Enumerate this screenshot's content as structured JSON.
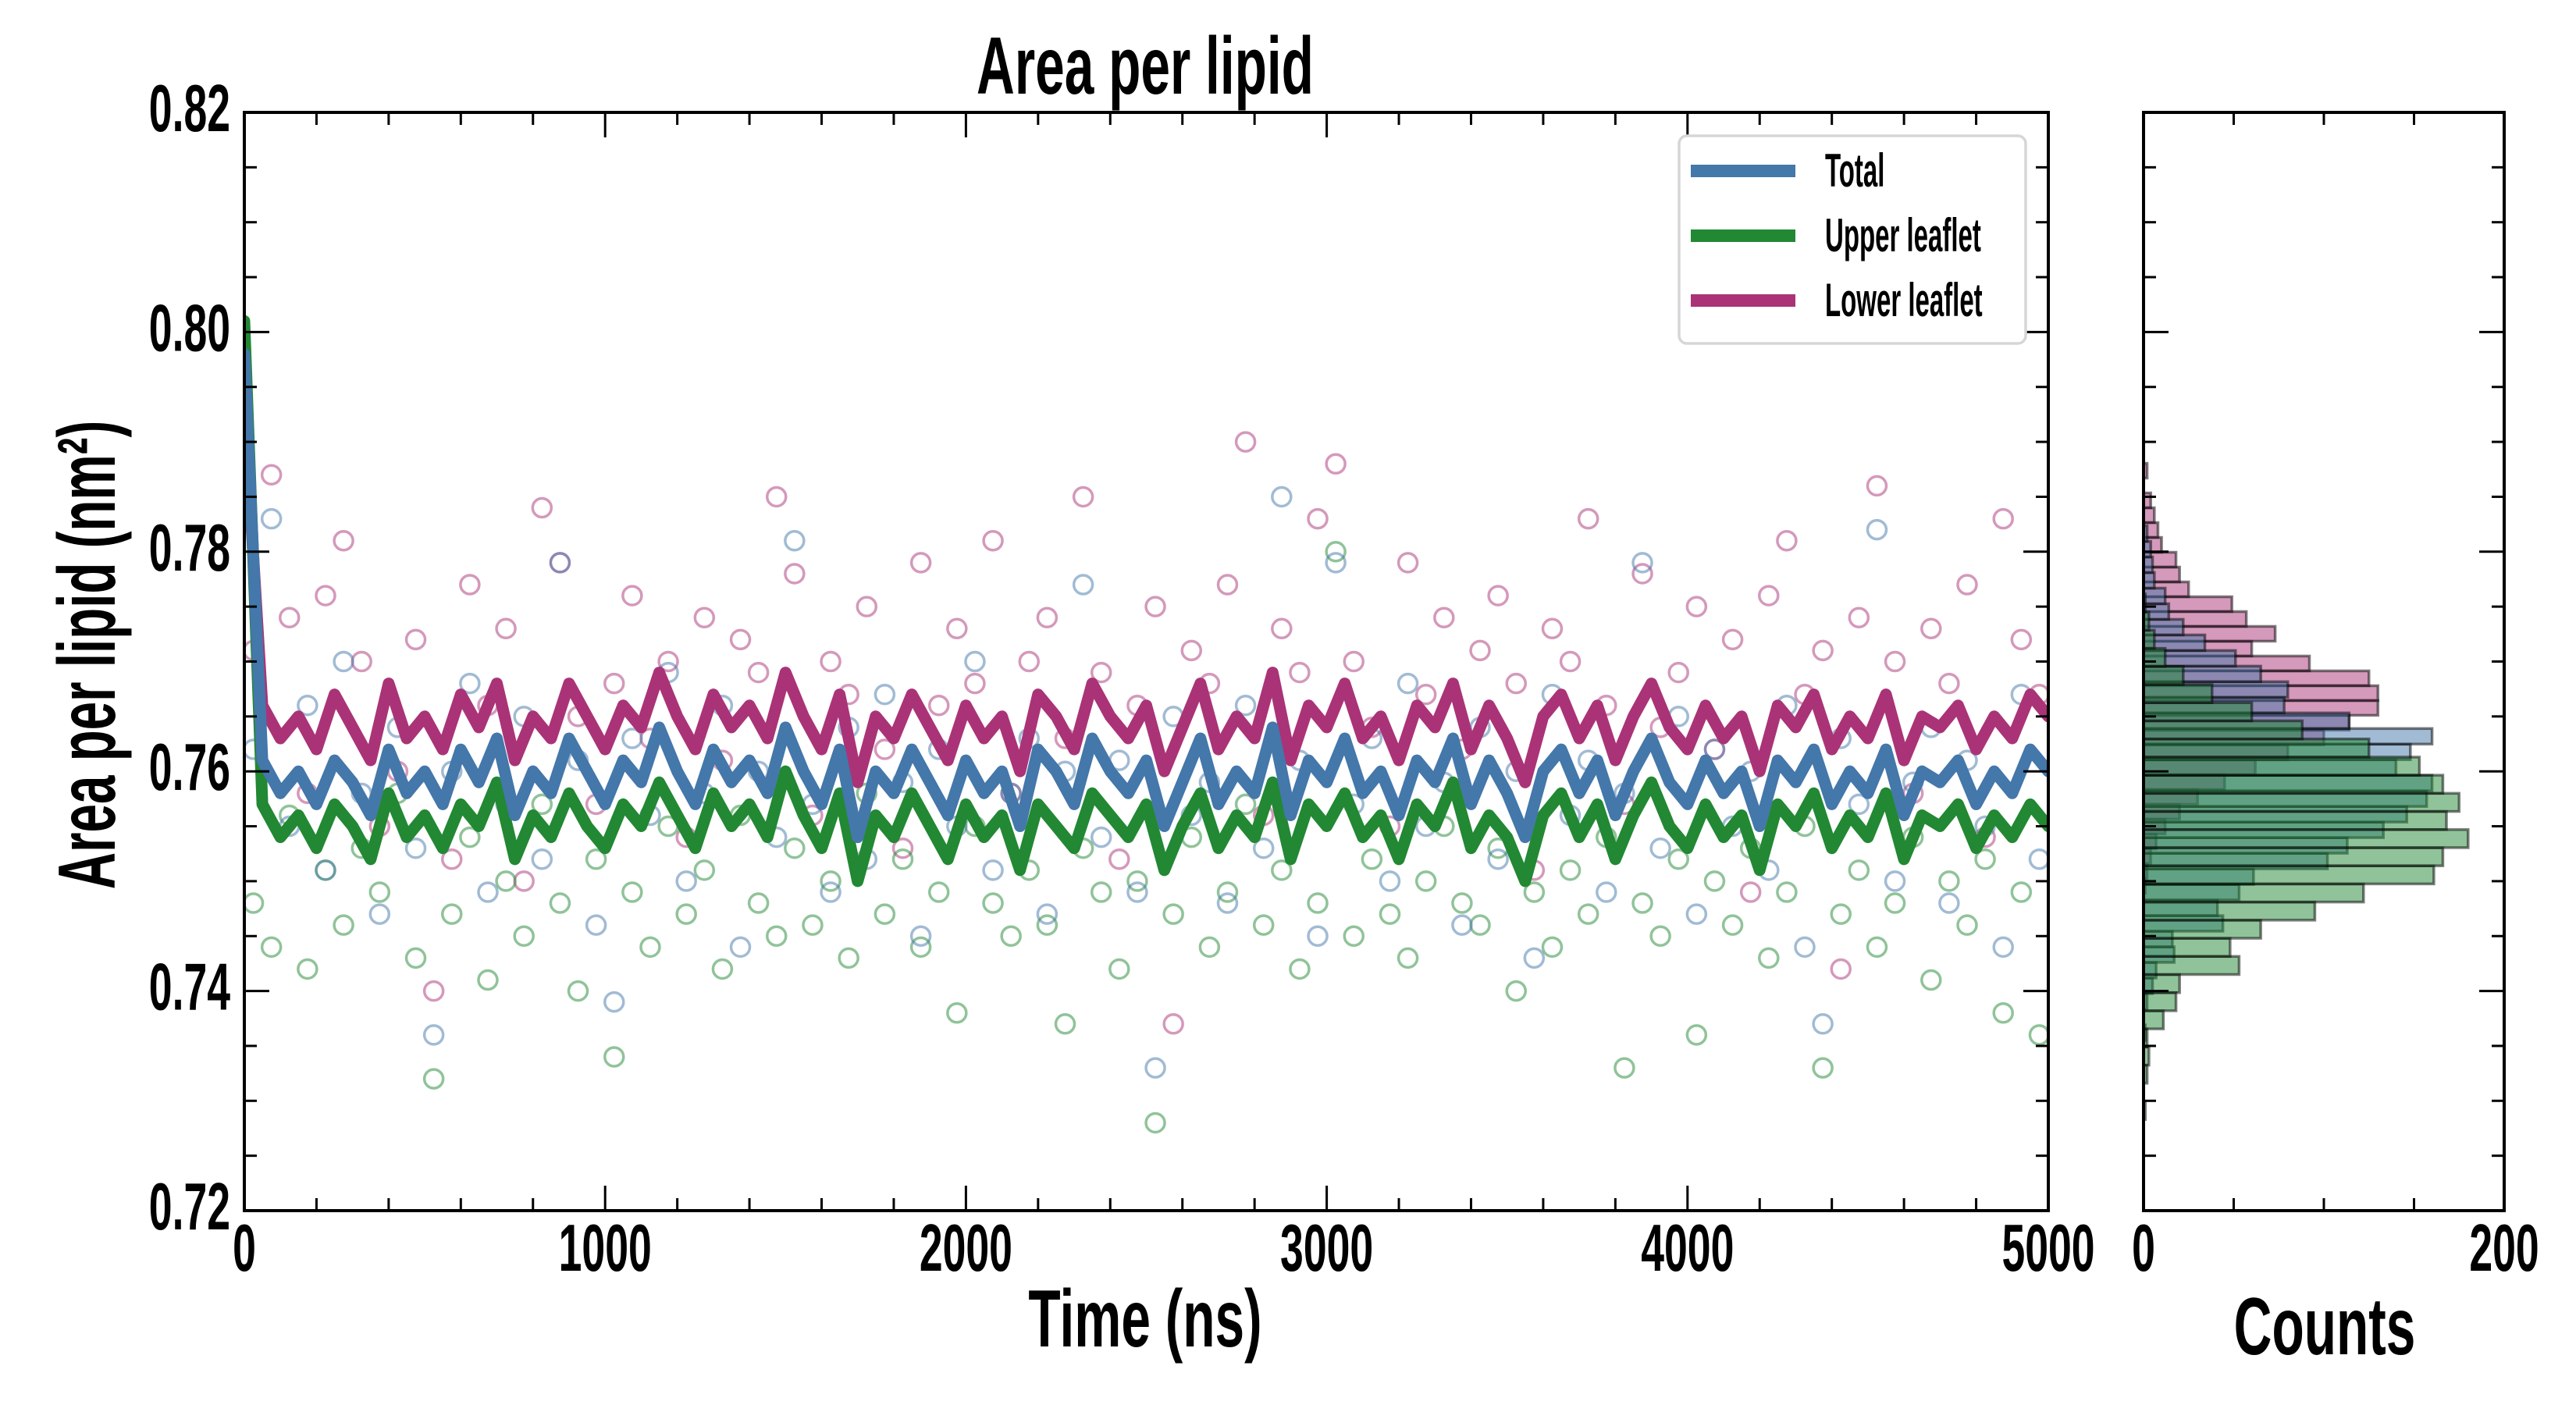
{
  "chart_data": [
    {
      "type": "line",
      "subtype": "line+scatter time series",
      "title": "Area per lipid",
      "xlabel": "Time (ns)",
      "ylabel": "Area per lipid (nm²)",
      "xlim": [
        0,
        5000
      ],
      "ylim": [
        0.72,
        0.82
      ],
      "grid": false,
      "x_ticks": {
        "values": [
          0,
          1000,
          2000,
          3000,
          4000,
          5000
        ],
        "labels": [
          "0",
          "1000",
          "2000",
          "3000",
          "4000",
          "5000"
        ],
        "minor_step": 200
      },
      "y_ticks": {
        "values": [
          0.72,
          0.74,
          0.76,
          0.78,
          0.8,
          0.82
        ],
        "labels": [
          "0.72",
          "0.74",
          "0.76",
          "0.78",
          "0.80",
          "0.82"
        ],
        "minor_step": 0.005
      },
      "legend": {
        "placement": "top-right",
        "entries": [
          {
            "label": "Total",
            "color": "#4477aa"
          },
          {
            "label": "Upper leaflet",
            "color": "#228833"
          },
          {
            "label": "Lower leaflet",
            "color": "#aa3377"
          }
        ]
      },
      "series": [
        {
          "name": "Lower leaflet",
          "color": "#aa3377",
          "line": {
            "x_start": 0,
            "x_step": 50,
            "values": [
              0.793,
              0.766,
              0.763,
              0.765,
              0.762,
              0.767,
              0.764,
              0.761,
              0.768,
              0.763,
              0.765,
              0.762,
              0.767,
              0.764,
              0.768,
              0.761,
              0.765,
              0.763,
              0.768,
              0.765,
              0.762,
              0.766,
              0.764,
              0.769,
              0.765,
              0.762,
              0.767,
              0.764,
              0.766,
              0.763,
              0.769,
              0.765,
              0.762,
              0.767,
              0.759,
              0.765,
              0.763,
              0.767,
              0.764,
              0.761,
              0.766,
              0.763,
              0.765,
              0.76,
              0.767,
              0.765,
              0.762,
              0.768,
              0.765,
              0.763,
              0.766,
              0.76,
              0.764,
              0.768,
              0.762,
              0.765,
              0.763,
              0.769,
              0.761,
              0.766,
              0.764,
              0.768,
              0.763,
              0.765,
              0.761,
              0.766,
              0.764,
              0.768,
              0.762,
              0.766,
              0.763,
              0.759,
              0.765,
              0.767,
              0.763,
              0.766,
              0.761,
              0.765,
              0.768,
              0.764,
              0.762,
              0.766,
              0.763,
              0.765,
              0.76,
              0.766,
              0.764,
              0.767,
              0.762,
              0.765,
              0.763,
              0.767,
              0.761,
              0.765,
              0.764,
              0.766,
              0.762,
              0.765,
              0.763,
              0.767,
              0.765
            ]
          },
          "scatter": {
            "x_start": 25,
            "x_step": 50,
            "values": [
              0.771,
              0.787,
              0.774,
              0.758,
              0.776,
              0.781,
              0.77,
              0.755,
              0.76,
              0.772,
              0.74,
              0.752,
              0.777,
              0.766,
              0.773,
              0.75,
              0.784,
              0.779,
              0.765,
              0.757,
              0.768,
              0.776,
              0.763,
              0.77,
              0.754,
              0.774,
              0.761,
              0.772,
              0.769,
              0.785,
              0.778,
              0.756,
              0.77,
              0.767,
              0.775,
              0.762,
              0.753,
              0.779,
              0.766,
              0.773,
              0.768,
              0.781,
              0.758,
              0.77,
              0.774,
              0.763,
              0.785,
              0.769,
              0.752,
              0.766,
              0.775,
              0.737,
              0.771,
              0.768,
              0.777,
              0.79,
              0.756,
              0.773,
              0.769,
              0.783,
              0.788,
              0.77,
              0.764,
              0.755,
              0.779,
              0.767,
              0.774,
              0.762,
              0.771,
              0.776,
              0.768,
              0.751,
              0.773,
              0.77,
              0.783,
              0.766,
              0.757,
              0.778,
              0.764,
              0.769,
              0.775,
              0.762,
              0.772,
              0.749,
              0.776,
              0.781,
              0.767,
              0.771,
              0.742,
              0.774,
              0.786,
              0.77,
              0.758,
              0.773,
              0.768,
              0.777,
              0.754,
              0.783,
              0.772,
              0.767
            ]
          }
        },
        {
          "name": "Upper leaflet",
          "color": "#228833",
          "line": {
            "x_start": 0,
            "x_step": 50,
            "values": [
              0.801,
              0.757,
              0.754,
              0.756,
              0.753,
              0.757,
              0.755,
              0.752,
              0.758,
              0.754,
              0.756,
              0.753,
              0.757,
              0.755,
              0.759,
              0.752,
              0.756,
              0.754,
              0.758,
              0.755,
              0.753,
              0.757,
              0.755,
              0.759,
              0.756,
              0.753,
              0.758,
              0.755,
              0.757,
              0.754,
              0.76,
              0.756,
              0.753,
              0.758,
              0.75,
              0.756,
              0.754,
              0.758,
              0.755,
              0.752,
              0.757,
              0.754,
              0.756,
              0.751,
              0.757,
              0.755,
              0.753,
              0.758,
              0.756,
              0.754,
              0.757,
              0.751,
              0.755,
              0.758,
              0.753,
              0.756,
              0.754,
              0.759,
              0.752,
              0.757,
              0.755,
              0.758,
              0.754,
              0.756,
              0.752,
              0.757,
              0.755,
              0.759,
              0.753,
              0.756,
              0.754,
              0.75,
              0.756,
              0.758,
              0.754,
              0.757,
              0.752,
              0.756,
              0.759,
              0.755,
              0.753,
              0.757,
              0.754,
              0.756,
              0.751,
              0.757,
              0.755,
              0.758,
              0.753,
              0.756,
              0.754,
              0.758,
              0.752,
              0.756,
              0.755,
              0.757,
              0.753,
              0.756,
              0.754,
              0.757,
              0.755
            ]
          },
          "scatter": {
            "x_start": 25,
            "x_step": 50,
            "values": [
              0.748,
              0.744,
              0.756,
              0.742,
              0.751,
              0.746,
              0.753,
              0.749,
              0.758,
              0.743,
              0.732,
              0.747,
              0.754,
              0.741,
              0.75,
              0.745,
              0.757,
              0.748,
              0.74,
              0.752,
              0.734,
              0.749,
              0.744,
              0.755,
              0.747,
              0.751,
              0.742,
              0.756,
              0.748,
              0.745,
              0.753,
              0.746,
              0.75,
              0.743,
              0.758,
              0.747,
              0.752,
              0.744,
              0.749,
              0.738,
              0.755,
              0.748,
              0.745,
              0.751,
              0.746,
              0.737,
              0.753,
              0.749,
              0.742,
              0.75,
              0.728,
              0.747,
              0.754,
              0.744,
              0.749,
              0.757,
              0.746,
              0.751,
              0.742,
              0.748,
              0.78,
              0.745,
              0.752,
              0.747,
              0.743,
              0.75,
              0.755,
              0.748,
              0.746,
              0.753,
              0.74,
              0.749,
              0.744,
              0.751,
              0.747,
              0.754,
              0.733,
              0.748,
              0.745,
              0.752,
              0.736,
              0.75,
              0.746,
              0.753,
              0.743,
              0.749,
              0.755,
              0.733,
              0.747,
              0.751,
              0.744,
              0.748,
              0.754,
              0.741,
              0.75,
              0.746,
              0.752,
              0.738,
              0.749,
              0.736
            ]
          }
        },
        {
          "name": "Total",
          "color": "#4477aa",
          "line": {
            "x_start": 0,
            "x_step": 50,
            "values": [
              0.798,
              0.761,
              0.758,
              0.76,
              0.757,
              0.761,
              0.759,
              0.756,
              0.762,
              0.758,
              0.76,
              0.757,
              0.762,
              0.759,
              0.763,
              0.756,
              0.76,
              0.758,
              0.763,
              0.76,
              0.757,
              0.761,
              0.759,
              0.764,
              0.76,
              0.757,
              0.762,
              0.759,
              0.761,
              0.758,
              0.764,
              0.76,
              0.757,
              0.762,
              0.754,
              0.76,
              0.758,
              0.762,
              0.759,
              0.756,
              0.761,
              0.758,
              0.76,
              0.755,
              0.762,
              0.76,
              0.757,
              0.763,
              0.76,
              0.758,
              0.761,
              0.755,
              0.759,
              0.763,
              0.757,
              0.76,
              0.758,
              0.764,
              0.756,
              0.761,
              0.759,
              0.763,
              0.758,
              0.76,
              0.756,
              0.761,
              0.759,
              0.763,
              0.757,
              0.761,
              0.758,
              0.754,
              0.76,
              0.762,
              0.758,
              0.761,
              0.756,
              0.76,
              0.763,
              0.759,
              0.757,
              0.761,
              0.758,
              0.76,
              0.755,
              0.761,
              0.759,
              0.762,
              0.757,
              0.76,
              0.758,
              0.762,
              0.756,
              0.76,
              0.759,
              0.761,
              0.757,
              0.76,
              0.758,
              0.762,
              0.76
            ]
          },
          "scatter": {
            "x_start": 25,
            "x_step": 50,
            "values": [
              0.762,
              0.783,
              0.755,
              0.766,
              0.751,
              0.77,
              0.758,
              0.747,
              0.764,
              0.753,
              0.736,
              0.76,
              0.768,
              0.749,
              0.757,
              0.765,
              0.752,
              0.779,
              0.761,
              0.746,
              0.739,
              0.763,
              0.756,
              0.769,
              0.75,
              0.758,
              0.766,
              0.744,
              0.76,
              0.754,
              0.781,
              0.757,
              0.749,
              0.764,
              0.752,
              0.767,
              0.759,
              0.745,
              0.762,
              0.755,
              0.77,
              0.751,
              0.758,
              0.763,
              0.747,
              0.76,
              0.777,
              0.754,
              0.761,
              0.749,
              0.733,
              0.765,
              0.756,
              0.759,
              0.748,
              0.766,
              0.753,
              0.785,
              0.761,
              0.745,
              0.779,
              0.757,
              0.763,
              0.75,
              0.768,
              0.755,
              0.759,
              0.746,
              0.764,
              0.752,
              0.76,
              0.743,
              0.767,
              0.756,
              0.761,
              0.749,
              0.758,
              0.779,
              0.753,
              0.765,
              0.747,
              0.762,
              0.755,
              0.76,
              0.751,
              0.766,
              0.744,
              0.737,
              0.763,
              0.757,
              0.782,
              0.75,
              0.759,
              0.764,
              0.748,
              0.761,
              0.755,
              0.744,
              0.767,
              0.752
            ]
          }
        }
      ]
    },
    {
      "type": "bar",
      "subtype": "horizontal histogram",
      "xlabel": "Counts",
      "xlim": [
        0,
        200
      ],
      "ylim": [
        0.72,
        0.82
      ],
      "x_ticks": {
        "values": [
          0,
          200
        ],
        "labels": [
          "0",
          "200"
        ],
        "minor_step": 50
      },
      "y_ticks": {
        "values": [
          0.72,
          0.74,
          0.76,
          0.78,
          0.8,
          0.82
        ],
        "minor_step": 0.005
      },
      "series": [
        {
          "name": "Lower leaflet",
          "color": "#aa3377",
          "bin_start": 0.7489,
          "bin_width": 0.00135,
          "counts": [
            1,
            2,
            4,
            7,
            12,
            20,
            30,
            45,
            62,
            80,
            100,
            114,
            130,
            130,
            125,
            92,
            60,
            73,
            57,
            49,
            25,
            20,
            18,
            10,
            8,
            6,
            4,
            0,
            2
          ]
        },
        {
          "name": "Total",
          "color": "#4477aa",
          "bin_start": 0.7355,
          "bin_width": 0.00142,
          "counts": [
            1,
            0,
            2,
            5,
            7,
            17,
            16,
            44,
            41,
            53,
            61,
            102,
            113,
            133,
            146,
            157,
            160,
            140,
            148,
            160,
            114,
            78,
            80,
            65,
            51,
            34,
            22,
            14,
            12,
            6,
            5,
            4,
            2
          ]
        },
        {
          "name": "Upper leaflet",
          "color": "#228833",
          "bin_start": 0.7283,
          "bin_width": 0.00165,
          "counts": [
            1,
            0,
            2,
            3,
            2,
            11,
            18,
            20,
            53,
            48,
            65,
            95,
            122,
            161,
            166,
            180,
            168,
            175,
            166,
            153,
            125,
            88,
            60,
            38,
            22,
            12,
            6,
            3,
            1
          ]
        }
      ]
    }
  ]
}
